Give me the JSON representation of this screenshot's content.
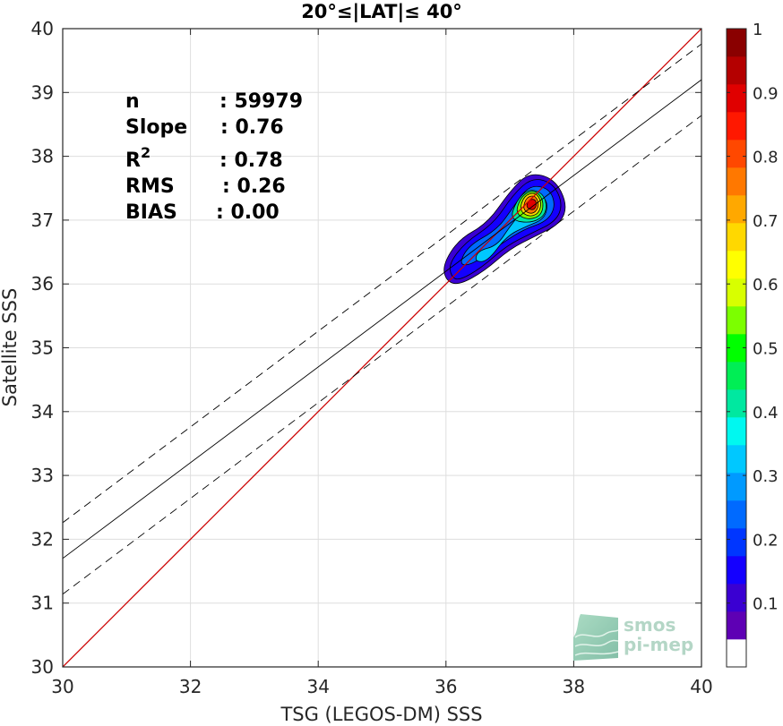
{
  "chart_data": {
    "type": "scatter",
    "title": "20°≤|LAT|≤ 40°",
    "xlabel": "TSG (LEGOS-DM) SSS",
    "ylabel": "Satellite SSS",
    "xlim": [
      30,
      40
    ],
    "ylim": [
      30,
      40
    ],
    "xticks": [
      30,
      32,
      34,
      36,
      38,
      40
    ],
    "yticks": [
      30,
      31,
      32,
      33,
      34,
      35,
      36,
      37,
      38,
      39,
      40
    ],
    "grid": true,
    "lines": [
      {
        "name": "1:1",
        "color": "#cc0000",
        "style": "solid",
        "x": [
          30,
          40
        ],
        "y": [
          30,
          40
        ]
      },
      {
        "name": "fit",
        "color": "#000000",
        "style": "solid",
        "x": [
          30,
          40
        ],
        "y": [
          31.7,
          39.2
        ]
      },
      {
        "name": "fit+",
        "color": "#000000",
        "style": "dashed",
        "x": [
          30,
          40
        ],
        "y": [
          32.26,
          39.76
        ]
      },
      {
        "name": "fit-",
        "color": "#000000",
        "style": "dashed",
        "x": [
          30,
          40
        ],
        "y": [
          31.14,
          38.64
        ]
      }
    ],
    "density_contours": {
      "peak": {
        "x": 37.35,
        "y": 37.25
      },
      "levels": [
        0.05,
        0.1,
        0.15,
        0.2,
        0.3,
        0.4,
        0.5,
        0.6,
        0.7,
        0.8,
        0.9
      ]
    },
    "stats": [
      {
        "label": "n",
        "sep": ":",
        "value": "59979"
      },
      {
        "label": "Slope",
        "sep": ":",
        "value": "0.76"
      },
      {
        "label": "R",
        "sup": "2",
        "sep": ":",
        "value": "0.78"
      },
      {
        "label": "RMS",
        "sep": ":",
        "value": "0.26"
      },
      {
        "label": "BIAS",
        "sep": ":",
        "value": "0.00"
      }
    ],
    "colorbar": {
      "range": [
        0,
        1
      ],
      "ticks": [
        "0.1",
        "0.2",
        "0.3",
        "0.4",
        "0.5",
        "0.6",
        "0.7",
        "0.8",
        "0.9",
        "1"
      ],
      "colors": [
        "#ffffff",
        "#5e00b4",
        "#3a00d2",
        "#1400ff",
        "#0036ff",
        "#006aff",
        "#009aff",
        "#00c8ff",
        "#00f8f0",
        "#00e8a0",
        "#00ee55",
        "#00ff00",
        "#7cff00",
        "#d8ff00",
        "#ffff00",
        "#ffd800",
        "#ffa800",
        "#ff7800",
        "#ff4800",
        "#ff1800",
        "#e00000",
        "#b40000",
        "#8a0000"
      ]
    }
  },
  "logo": {
    "line1": "smos",
    "line2": "pi-mep"
  }
}
